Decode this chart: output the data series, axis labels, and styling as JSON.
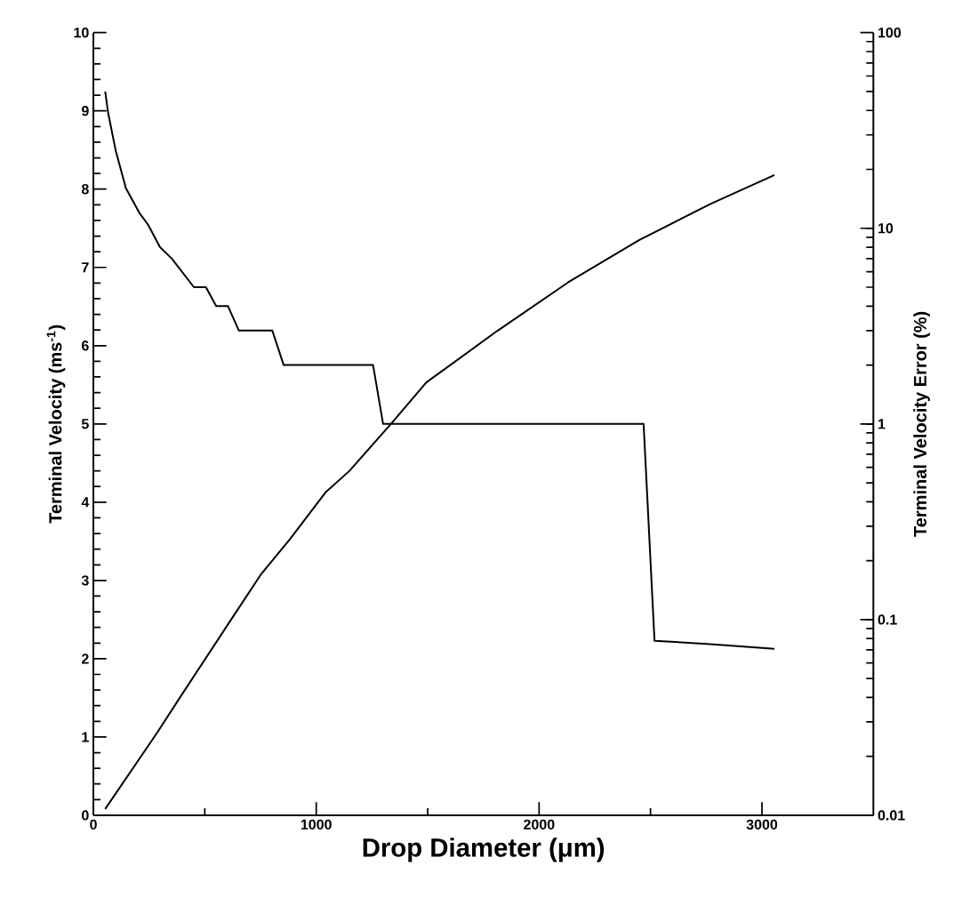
{
  "chart_data": {
    "type": "line",
    "xlabel": "Drop Diameter (μm)",
    "ylabel": "Terminal Velocity (ms$^{-1}$)",
    "y2label": "Terminal Velocity Error (%)",
    "log": "y2",
    "xlim": [
      0,
      3500
    ],
    "xticks": [
      0,
      1000,
      2000,
      3000
    ],
    "ylim": [
      0,
      10
    ],
    "yticks": [
      0,
      1,
      2,
      3,
      4,
      5,
      6,
      7,
      8,
      9,
      10
    ],
    "y2lim": [
      0.01,
      100
    ],
    "y2ticks": [
      0.01,
      0.1,
      1,
      10,
      100
    ],
    "series": [
      {
        "color": "#000000",
        "x": [
          53,
          285,
          392,
          618,
          750,
          883,
          1043,
          1149,
          1335,
          1494,
          1813,
          2131,
          2450,
          2769,
          3056
        ],
        "values": [
          0.08,
          1.05,
          1.52,
          2.5,
          3.07,
          3.53,
          4.13,
          4.4,
          5.0,
          5.53,
          6.19,
          6.81,
          7.35,
          7.81,
          8.18
        ]
      },
      {
        "color": "#000000",
        "axis": "y2",
        "x": [
          53,
          66,
          100,
          146,
          206,
          246,
          299,
          352,
          451,
          505,
          551,
          604,
          653,
          803,
          854,
          1255,
          1300,
          2469,
          2518,
          2769,
          3056
        ],
        "values": [
          50,
          39,
          25,
          16,
          12,
          10.4,
          8,
          7,
          5,
          5,
          4,
          4,
          3,
          3,
          2,
          2,
          1,
          1,
          0.078,
          0.075,
          0.071
        ]
      }
    ]
  }
}
